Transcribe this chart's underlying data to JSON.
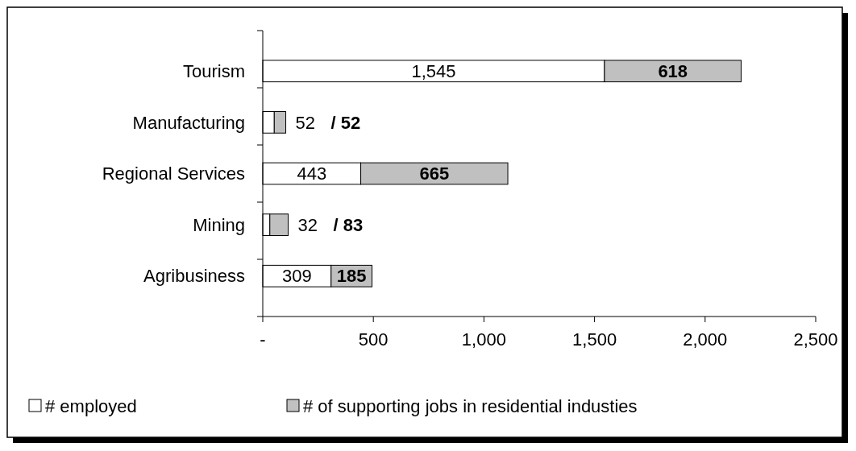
{
  "chart_data": {
    "type": "bar",
    "orientation": "horizontal",
    "stacked": true,
    "categories": [
      "Tourism",
      "Manufacturing",
      "Regional Services",
      "Mining",
      "Agribusiness"
    ],
    "series": [
      {
        "name": "# employed",
        "color": "#ffffff",
        "values": [
          1545,
          52,
          443,
          32,
          309
        ],
        "value_labels": [
          "1,545",
          "52",
          "443",
          "32",
          "309"
        ]
      },
      {
        "name": "# of supporting jobs in residential industies",
        "color": "#c0c0c0",
        "values": [
          618,
          52,
          665,
          83,
          185
        ],
        "value_labels": [
          "618",
          "/ 52",
          "665",
          "/ 83",
          "185"
        ]
      }
    ],
    "xlim": [
      0,
      2500
    ],
    "xticks": [
      {
        "value": 0,
        "label": "-"
      },
      500,
      {
        "value": 1000,
        "label": "1,000"
      },
      {
        "value": 1500,
        "label": "1,500"
      },
      {
        "value": 2000,
        "label": "2,000"
      },
      {
        "value": 2500,
        "label": "2,500"
      }
    ],
    "grid": false,
    "legend": "bottom"
  }
}
